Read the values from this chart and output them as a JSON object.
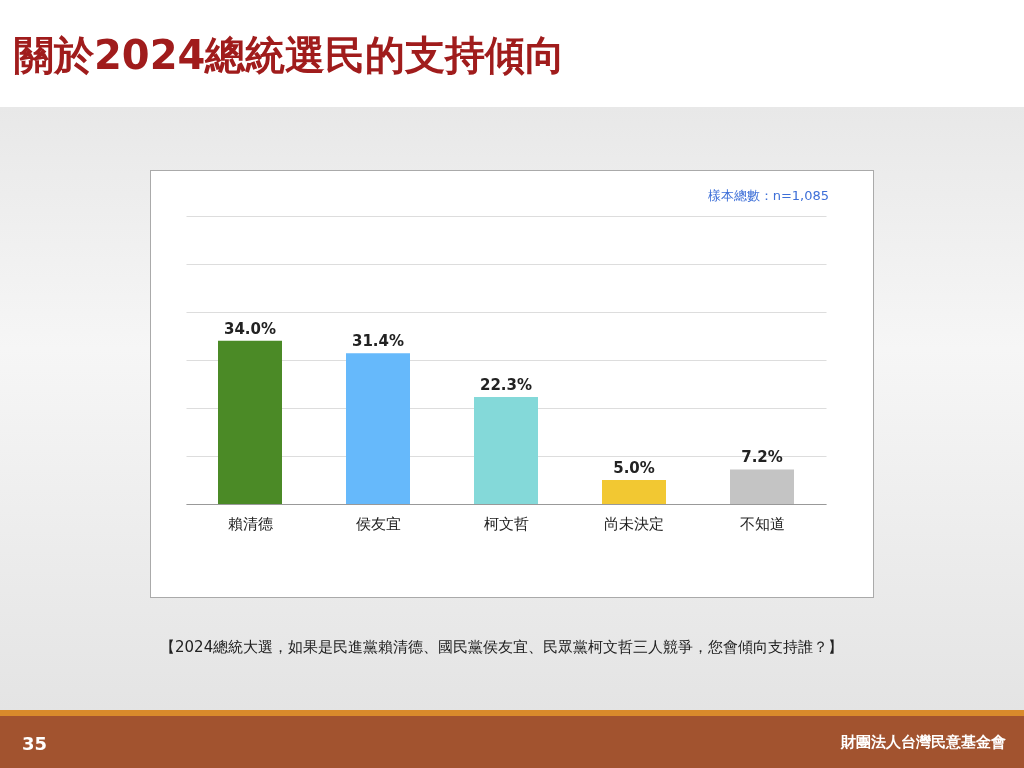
{
  "chart_data": {
    "type": "bar",
    "title": "關於2024總統選民的支持傾向",
    "subtitle": "樣本總數：n=1,085",
    "categories": [
      "賴清德",
      "侯友宜",
      "柯文哲",
      "尚未決定",
      "不知道"
    ],
    "values": [
      34.0,
      31.4,
      22.3,
      5.0,
      7.2
    ],
    "colors": [
      "#4b8a26",
      "#66b9fb",
      "#84d9d9",
      "#f2c832",
      "#c4c4c4"
    ],
    "value_labels": [
      "34.0%",
      "31.4%",
      "22.3%",
      "5.0%",
      "7.2%"
    ],
    "ylim": [
      0,
      60
    ],
    "yticks": [
      {
        "value": 0,
        "label": null
      },
      {
        "value": 10,
        "label": null
      },
      {
        "value": 20,
        "label": null
      },
      {
        "value": 30,
        "label": null
      },
      {
        "value": 40,
        "label": null
      },
      {
        "value": 50,
        "label": null
      },
      {
        "value": 60,
        "label": null
      }
    ],
    "grid": "y",
    "tick_labels": "x",
    "legend": false,
    "annotations": [
      "【2024總統大選，如果是民進黨賴清德、國民黨侯友宜、民眾黨柯文哲三人競爭，您會傾向支持誰？】",
      "35",
      "財團法人台灣民意基金會"
    ]
  }
}
